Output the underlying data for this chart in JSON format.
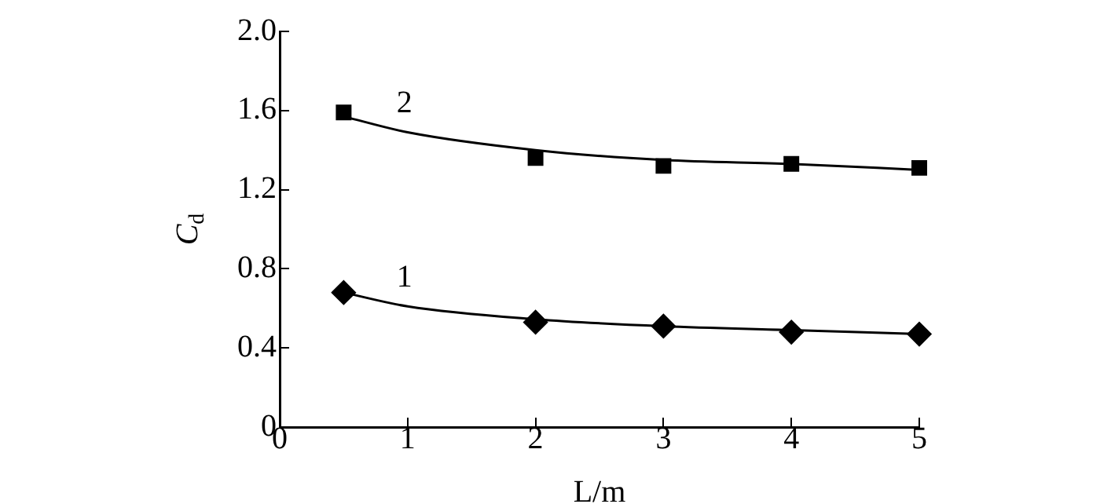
{
  "chart_data": {
    "type": "scatter",
    "xlabel": "L/m",
    "ylabel": "C$_{d}$",
    "xlim": [
      0,
      5
    ],
    "xticks": [
      0,
      1,
      2,
      3,
      4,
      5
    ],
    "ylim": [
      0,
      2
    ],
    "yticks": [
      0,
      0.4,
      0.8,
      1.2,
      1.6,
      {
        "value": 2,
        "label": "2.0"
      }
    ],
    "grid": false,
    "legend": false,
    "series": [
      {
        "marker": "square",
        "color": "#000000",
        "x": [
          0.5,
          2,
          3,
          4,
          5
        ],
        "values": [
          1.59,
          1.36,
          1.32,
          1.33,
          1.31
        ]
      },
      {
        "type": "line",
        "name": "2",
        "marker": "none",
        "line_style": "solid",
        "color": "#000000",
        "x": [
          0.5,
          1,
          2,
          3,
          4,
          5
        ],
        "values": [
          1.57,
          1.49,
          1.4,
          1.35,
          1.33,
          1.3
        ]
      },
      {
        "marker": "diamond",
        "color": "#000000",
        "x": [
          0.5,
          2,
          3,
          4,
          5
        ],
        "values": [
          0.68,
          0.53,
          0.51,
          0.48,
          0.47
        ]
      },
      {
        "type": "line",
        "name": "1",
        "marker": "none",
        "line_style": "solid",
        "color": "#000000",
        "x": [
          0.5,
          1,
          2,
          3,
          4,
          5
        ],
        "values": [
          0.68,
          0.61,
          0.545,
          0.51,
          0.49,
          0.47
        ]
      }
    ]
  }
}
